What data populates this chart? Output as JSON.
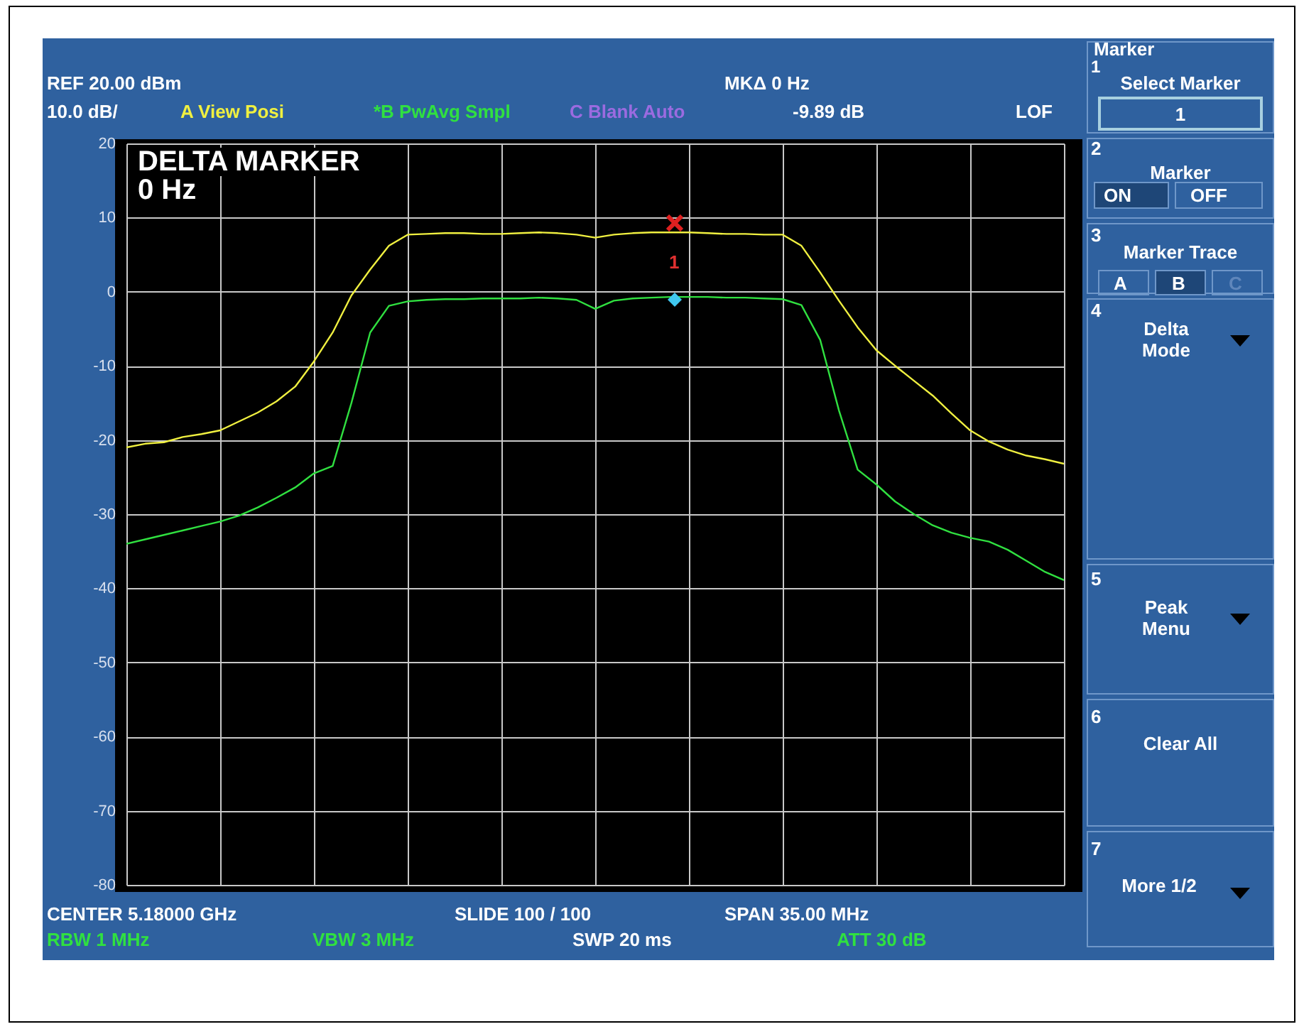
{
  "chart_data": {
    "type": "line",
    "title": "DELTA MARKER",
    "subtitle": "0 Hz",
    "categories": [
      null,
      null,
      null,
      null,
      null,
      null,
      null,
      null,
      null,
      null,
      null,
      null,
      null,
      null,
      null,
      null,
      null,
      null,
      null,
      null,
      null,
      null,
      null,
      null,
      null,
      null,
      null,
      null,
      null,
      null,
      null,
      null,
      null,
      null,
      null,
      null,
      null,
      null,
      null,
      null,
      null,
      null,
      null,
      null,
      null,
      null,
      null,
      null,
      null,
      null,
      null
    ],
    "ylim": [
      -80,
      20
    ],
    "yticks": [
      -80,
      -70,
      -60,
      -50,
      -40,
      -30,
      -20,
      -10,
      0,
      10,
      20
    ],
    "grid": true,
    "tick_labels": "y",
    "series": [
      {
        "name": "A View Posi",
        "color": "#f0f040",
        "values": [
          -21,
          -20.5,
          -20.3,
          -19.6,
          -19.2,
          -18.7,
          -17.5,
          -16.3,
          -14.8,
          -12.8,
          -9.4,
          -5.5,
          -0.5,
          3,
          6.2,
          7.7,
          7.8,
          7.9,
          7.9,
          7.8,
          7.8,
          7.9,
          8,
          7.9,
          7.7,
          7.3,
          7.7,
          7.9,
          8,
          8,
          8,
          7.9,
          7.8,
          7.8,
          7.7,
          7.7,
          6.2,
          2.6,
          -1.2,
          -4.8,
          -7.9,
          -10,
          -12,
          -14,
          -16.4,
          -18.7,
          -20.2,
          -21.3,
          -22.1,
          -22.6,
          -23.2
        ]
      },
      {
        "name": "*B PwAvg Smpl",
        "color": "#30e040",
        "values": [
          -34,
          -33.4,
          -32.8,
          -32.2,
          -31.6,
          -31,
          -30.2,
          -29.1,
          -27.8,
          -26.4,
          -24.5,
          -23.5,
          -15,
          -5.5,
          -1.9,
          -1.3,
          -1.1,
          -1,
          -1,
          -0.9,
          -0.9,
          -0.9,
          -0.8,
          -0.9,
          -1.1,
          -2.3,
          -1.2,
          -0.9,
          -0.8,
          -0.7,
          -0.7,
          -0.7,
          -0.8,
          -0.8,
          -0.9,
          -1,
          -1.8,
          -6.5,
          -16,
          -24,
          -26,
          -28.3,
          -30,
          -31.5,
          -32.5,
          -33.2,
          -33.7,
          -34.8,
          -36.3,
          -37.8,
          -38.9
        ]
      }
    ],
    "annotations": [
      "REF  20.00 dBm",
      "10.0 dB/",
      "C Blank Auto",
      "MKΔ 0 Hz",
      "-9.89 dB",
      "LOF",
      "CENTER 5.18000 GHz",
      "SLIDE 100 / 100",
      "SPAN 35.00 MHz",
      "RBW  1 MHz",
      "VBW  3 MHz",
      "SWP  20 ms",
      "ATT  30 dB",
      "Marker",
      "1",
      "Select Marker",
      "1",
      "2",
      "Marker",
      "ON",
      "OFF",
      "3",
      "Marker Trace",
      "A",
      "B",
      "C",
      "4",
      "Delta Mode",
      "5",
      "Peak Menu",
      "6",
      "Clear All",
      "7",
      "More 1/2",
      "1"
    ]
  }
}
